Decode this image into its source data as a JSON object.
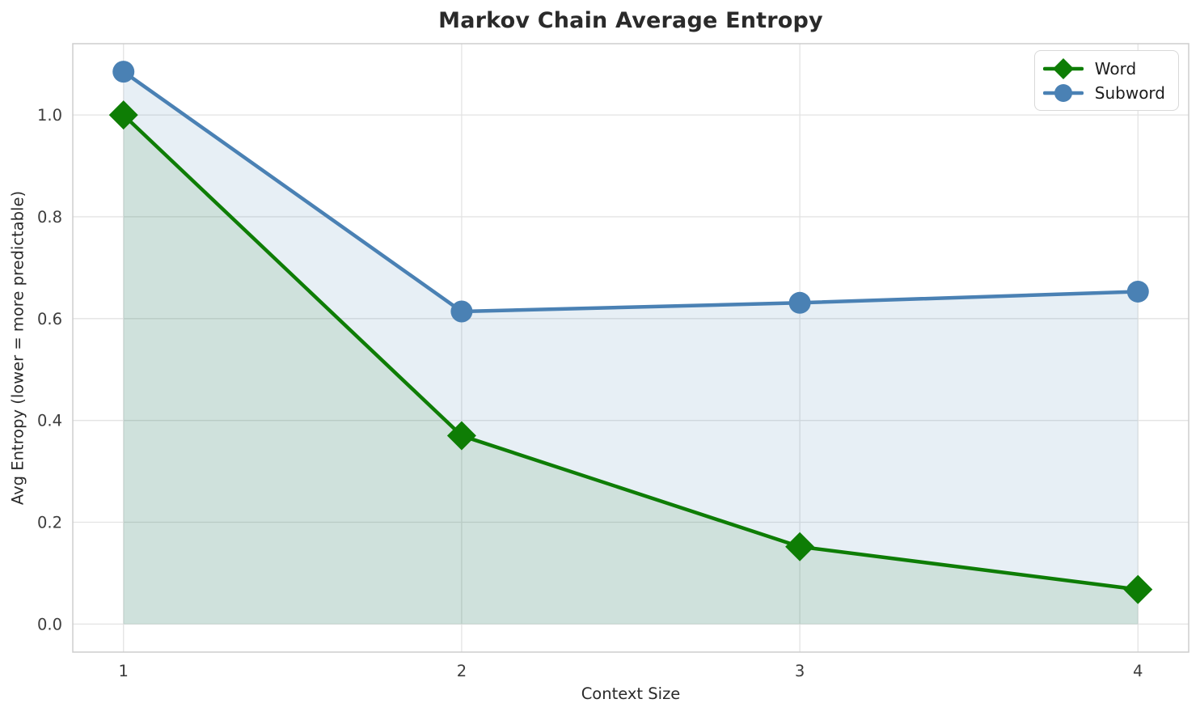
{
  "chart_data": {
    "type": "line",
    "title": "Markov Chain Average Entropy",
    "xlabel": "Context Size",
    "ylabel": "Avg Entropy (lower = more predictable)",
    "x": [
      1,
      2,
      3,
      4
    ],
    "xtick_labels": [
      "1",
      "2",
      "3",
      "4"
    ],
    "yticks": [
      0.0,
      0.2,
      0.4,
      0.6,
      0.8,
      1.0
    ],
    "ytick_labels": [
      "0.0",
      "0.2",
      "0.4",
      "0.6",
      "0.8",
      "1.0"
    ],
    "xlim": [
      0.85,
      4.15
    ],
    "ylim": [
      -0.055,
      1.14
    ],
    "grid": true,
    "legend_position": "upper right",
    "baseline": 0,
    "series": [
      {
        "name": "Word",
        "marker": "diamond",
        "color": "#0e7d05",
        "fill_color": "rgba(0,110,0,0.10)",
        "values": [
          1.0,
          0.37,
          0.152,
          0.068
        ]
      },
      {
        "name": "Subword",
        "marker": "circle",
        "color": "#4a81b4",
        "fill_color": "rgba(70,130,180,0.13)",
        "values": [
          1.085,
          0.614,
          0.631,
          0.653
        ]
      }
    ]
  },
  "style": {
    "gridline_color": "#e3e3e3",
    "spine_color": "#cdcdcd",
    "tick_label_color": "#3d3d3d"
  }
}
